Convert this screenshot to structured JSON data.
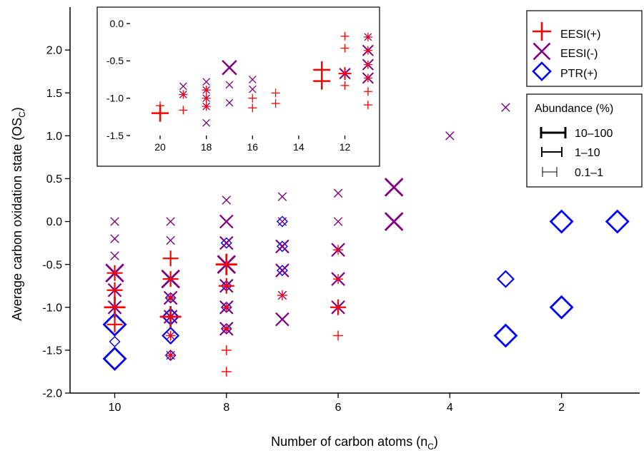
{
  "chart_data": {
    "type": "scatter",
    "colors": {
      "EESI(+)": "#ff0000",
      "EESI(-)": "#800080",
      "PTR(+)": "#0000ff"
    },
    "main": {
      "xlabel": "Number of carbon atoms (n",
      "xlabel_sub": "C",
      "xlabel_end": ")",
      "ylabel": "Average carbon oxidation state (OS",
      "ylabel_sub": "C",
      "ylabel_end": ")",
      "xlim": [
        10.8,
        0.6
      ],
      "ylim": [
        -2.0,
        2.5
      ],
      "x_ticks": [
        10,
        8,
        6,
        4,
        2
      ],
      "x_tick_labels": [
        "10",
        "8",
        "6",
        "4",
        "2"
      ],
      "y_ticks": [
        -2.0,
        -1.5,
        -1.0,
        -0.5,
        0.0,
        0.5,
        1.0,
        1.5,
        2.0
      ],
      "y_tick_labels": [
        "-2.0",
        "-1.5",
        "-1.0",
        "-0.5",
        "0.0",
        "0.5",
        "1.0",
        "1.5",
        "2.0"
      ],
      "series": [
        {
          "name": "EESI(+)",
          "marker": "plus",
          "points": [
            {
              "x": 10,
              "y": -0.6,
              "abundance": "1-10"
            },
            {
              "x": 10,
              "y": -0.8,
              "abundance": "1-10"
            },
            {
              "x": 10,
              "y": -1.0,
              "abundance": "10-100"
            },
            {
              "x": 10,
              "y": -1.2,
              "abundance": "1-10"
            },
            {
              "x": 9,
              "y": -0.43,
              "abundance": "1-10"
            },
            {
              "x": 9,
              "y": -0.67,
              "abundance": "1-10"
            },
            {
              "x": 9,
              "y": -0.89,
              "abundance": "0.1-1"
            },
            {
              "x": 9,
              "y": -1.11,
              "abundance": "10-100"
            },
            {
              "x": 9,
              "y": -1.33,
              "abundance": "0.1-1"
            },
            {
              "x": 9,
              "y": -1.56,
              "abundance": "0.1-1"
            },
            {
              "x": 8,
              "y": -0.5,
              "abundance": "10-100"
            },
            {
              "x": 8,
              "y": -0.75,
              "abundance": "1-10"
            },
            {
              "x": 8,
              "y": -1.0,
              "abundance": "0.1-1"
            },
            {
              "x": 8,
              "y": -1.25,
              "abundance": "0.1-1"
            },
            {
              "x": 8,
              "y": -1.5,
              "abundance": "0.1-1"
            },
            {
              "x": 8,
              "y": -1.75,
              "abundance": "0.1-1"
            },
            {
              "x": 7,
              "y": -0.86,
              "abundance": "0.1-1"
            },
            {
              "x": 6,
              "y": -0.33,
              "abundance": "0.1-1"
            },
            {
              "x": 6,
              "y": -0.67,
              "abundance": "0.1-1"
            },
            {
              "x": 6,
              "y": -1.0,
              "abundance": "1-10"
            },
            {
              "x": 6,
              "y": -1.33,
              "abundance": "0.1-1"
            }
          ]
        },
        {
          "name": "EESI(-)",
          "marker": "cross",
          "points": [
            {
              "x": 10,
              "y": 0.0,
              "abundance": "0.1-1"
            },
            {
              "x": 10,
              "y": -0.2,
              "abundance": "0.1-1"
            },
            {
              "x": 10,
              "y": -0.4,
              "abundance": "0.1-1"
            },
            {
              "x": 10,
              "y": -0.6,
              "abundance": "10-100"
            },
            {
              "x": 10,
              "y": -0.8,
              "abundance": "1-10"
            },
            {
              "x": 10,
              "y": -1.0,
              "abundance": "1-10"
            },
            {
              "x": 9,
              "y": 0.0,
              "abundance": "0.1-1"
            },
            {
              "x": 9,
              "y": -0.22,
              "abundance": "0.1-1"
            },
            {
              "x": 9,
              "y": -0.67,
              "abundance": "10-100"
            },
            {
              "x": 9,
              "y": -0.89,
              "abundance": "1-10"
            },
            {
              "x": 9,
              "y": -1.11,
              "abundance": "1-10"
            },
            {
              "x": 9,
              "y": -1.33,
              "abundance": "0.1-1"
            },
            {
              "x": 9,
              "y": -1.56,
              "abundance": "0.1-1"
            },
            {
              "x": 8,
              "y": 0.25,
              "abundance": "0.1-1"
            },
            {
              "x": 8,
              "y": 0.0,
              "abundance": "1-10"
            },
            {
              "x": 8,
              "y": -0.25,
              "abundance": "1-10"
            },
            {
              "x": 8,
              "y": -0.5,
              "abundance": "10-100"
            },
            {
              "x": 8,
              "y": -0.75,
              "abundance": "1-10"
            },
            {
              "x": 8,
              "y": -1.0,
              "abundance": "1-10"
            },
            {
              "x": 8,
              "y": -1.25,
              "abundance": "1-10"
            },
            {
              "x": 7,
              "y": 0.29,
              "abundance": "0.1-1"
            },
            {
              "x": 7,
              "y": 0.0,
              "abundance": "0.1-1"
            },
            {
              "x": 7,
              "y": -0.29,
              "abundance": "1-10"
            },
            {
              "x": 7,
              "y": -0.57,
              "abundance": "1-10"
            },
            {
              "x": 7,
              "y": -0.86,
              "abundance": "0.1-1"
            },
            {
              "x": 7,
              "y": -1.14,
              "abundance": "1-10"
            },
            {
              "x": 6,
              "y": 0.33,
              "abundance": "0.1-1"
            },
            {
              "x": 6,
              "y": 0.0,
              "abundance": "0.1-1"
            },
            {
              "x": 6,
              "y": -0.33,
              "abundance": "1-10"
            },
            {
              "x": 6,
              "y": -0.67,
              "abundance": "1-10"
            },
            {
              "x": 6,
              "y": -1.0,
              "abundance": "1-10"
            },
            {
              "x": 5,
              "y": 0.4,
              "abundance": "10-100"
            },
            {
              "x": 5,
              "y": 0.0,
              "abundance": "10-100"
            },
            {
              "x": 4,
              "y": 1.0,
              "abundance": "0.1-1"
            },
            {
              "x": 3,
              "y": 1.33,
              "abundance": "0.1-1"
            }
          ]
        },
        {
          "name": "PTR(+)",
          "marker": "diamond",
          "points": [
            {
              "x": 10,
              "y": -1.2,
              "abundance": "10-100"
            },
            {
              "x": 10,
              "y": -1.4,
              "abundance": "0.1-1"
            },
            {
              "x": 10,
              "y": -1.6,
              "abundance": "10-100"
            },
            {
              "x": 9,
              "y": -0.89,
              "abundance": "0.1-1"
            },
            {
              "x": 9,
              "y": -1.11,
              "abundance": "1-10"
            },
            {
              "x": 9,
              "y": -1.33,
              "abundance": "1-10"
            },
            {
              "x": 9,
              "y": -1.56,
              "abundance": "0.1-1"
            },
            {
              "x": 8,
              "y": -0.25,
              "abundance": "0.1-1"
            },
            {
              "x": 8,
              "y": -0.75,
              "abundance": "0.1-1"
            },
            {
              "x": 8,
              "y": -1.0,
              "abundance": "0.1-1"
            },
            {
              "x": 8,
              "y": -1.25,
              "abundance": "0.1-1"
            },
            {
              "x": 7,
              "y": 0.0,
              "abundance": "0.1-1"
            },
            {
              "x": 7,
              "y": -0.29,
              "abundance": "0.1-1"
            },
            {
              "x": 7,
              "y": -0.57,
              "abundance": "0.1-1"
            },
            {
              "x": 3,
              "y": -0.67,
              "abundance": "1-10"
            },
            {
              "x": 3,
              "y": -1.33,
              "abundance": "10-100"
            },
            {
              "x": 2,
              "y": 0.0,
              "abundance": "10-100"
            },
            {
              "x": 2,
              "y": -1.0,
              "abundance": "10-100"
            },
            {
              "x": 1,
              "y": 0.0,
              "abundance": "10-100"
            }
          ]
        }
      ]
    },
    "inset": {
      "xlim": [
        21.3,
        10.5
      ],
      "ylim": [
        -1.5,
        0.0
      ],
      "x_ticks": [
        20,
        18,
        16,
        14,
        12
      ],
      "x_tick_labels": [
        "20",
        "18",
        "16",
        "14",
        "12"
      ],
      "y_ticks": [
        0.0,
        -0.5,
        -1.0,
        -1.5
      ],
      "y_tick_labels": [
        "0.0",
        "-0.5",
        "-1.0",
        "-1.5"
      ],
      "series": [
        {
          "name": "EESI(+)",
          "marker": "plus",
          "points": [
            {
              "x": 20,
              "y": -1.2,
              "abundance": "10-100"
            },
            {
              "x": 20,
              "y": -1.1,
              "abundance": "0.1-1"
            },
            {
              "x": 19,
              "y": -0.95,
              "abundance": "0.1-1"
            },
            {
              "x": 19,
              "y": -1.16,
              "abundance": "0.1-1"
            },
            {
              "x": 18,
              "y": -0.89,
              "abundance": "0.1-1"
            },
            {
              "x": 18,
              "y": -1.0,
              "abundance": "0.1-1"
            },
            {
              "x": 18,
              "y": -1.11,
              "abundance": "0.1-1"
            },
            {
              "x": 16,
              "y": -1.0,
              "abundance": "0.1-1"
            },
            {
              "x": 16,
              "y": -1.13,
              "abundance": "0.1-1"
            },
            {
              "x": 15,
              "y": -0.93,
              "abundance": "0.1-1"
            },
            {
              "x": 15,
              "y": -1.07,
              "abundance": "0.1-1"
            },
            {
              "x": 13,
              "y": -0.62,
              "abundance": "10-100"
            },
            {
              "x": 13,
              "y": -0.77,
              "abundance": "10-100"
            },
            {
              "x": 12,
              "y": -0.17,
              "abundance": "0.1-1"
            },
            {
              "x": 12,
              "y": -0.33,
              "abundance": "0.1-1"
            },
            {
              "x": 12,
              "y": -0.67,
              "abundance": "1-10"
            },
            {
              "x": 12,
              "y": -0.83,
              "abundance": "0.1-1"
            },
            {
              "x": 11,
              "y": -0.18,
              "abundance": "0.1-1"
            },
            {
              "x": 11,
              "y": -0.36,
              "abundance": "0.1-1"
            },
            {
              "x": 11,
              "y": -0.55,
              "abundance": "0.1-1"
            },
            {
              "x": 11,
              "y": -0.73,
              "abundance": "0.1-1"
            },
            {
              "x": 11,
              "y": -0.91,
              "abundance": "0.1-1"
            },
            {
              "x": 11,
              "y": -1.09,
              "abundance": "0.1-1"
            }
          ]
        },
        {
          "name": "EESI(-)",
          "marker": "cross",
          "points": [
            {
              "x": 19,
              "y": -0.84,
              "abundance": "0.1-1"
            },
            {
              "x": 19,
              "y": -0.95,
              "abundance": "0.1-1"
            },
            {
              "x": 18,
              "y": -0.78,
              "abundance": "0.1-1"
            },
            {
              "x": 18,
              "y": -0.89,
              "abundance": "0.1-1"
            },
            {
              "x": 18,
              "y": -1.0,
              "abundance": "0.1-1"
            },
            {
              "x": 18,
              "y": -1.11,
              "abundance": "0.1-1"
            },
            {
              "x": 18,
              "y": -1.33,
              "abundance": "0.1-1"
            },
            {
              "x": 17,
              "y": -0.59,
              "abundance": "10-100"
            },
            {
              "x": 17,
              "y": -0.82,
              "abundance": "0.1-1"
            },
            {
              "x": 17,
              "y": -1.06,
              "abundance": "0.1-1"
            },
            {
              "x": 16,
              "y": -0.75,
              "abundance": "0.1-1"
            },
            {
              "x": 16,
              "y": -0.88,
              "abundance": "0.1-1"
            },
            {
              "x": 12,
              "y": -0.67,
              "abundance": "1-10"
            },
            {
              "x": 11,
              "y": -0.18,
              "abundance": "0.1-1"
            },
            {
              "x": 11,
              "y": -0.36,
              "abundance": "1-10"
            },
            {
              "x": 11,
              "y": -0.55,
              "abundance": "1-10"
            },
            {
              "x": 11,
              "y": -0.73,
              "abundance": "1-10"
            }
          ]
        }
      ]
    },
    "legend": {
      "placement": "top-right",
      "entries": [
        "EESI(+)",
        "EESI(-)",
        "PTR(+)"
      ]
    },
    "abundance_legend": {
      "title": "Abundance (%)",
      "entries": [
        "10–100",
        "1–10",
        "0.1–1"
      ]
    }
  }
}
